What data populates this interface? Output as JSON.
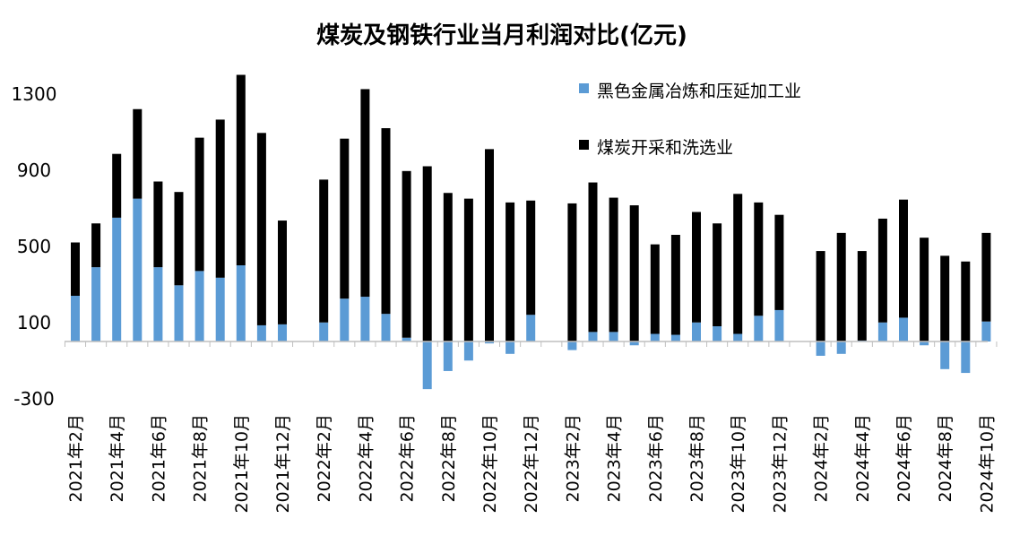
{
  "chart_data": {
    "type": "bar",
    "title": "煤炭及钢铁行业当月利润对比(亿元)",
    "xlabel": "",
    "ylabel": "",
    "ylim": [
      -300,
      1400
    ],
    "yticks": [
      -300,
      100,
      500,
      900,
      1300
    ],
    "legend_position": "top-right",
    "grid": false,
    "categories": [
      "2021年2月",
      "2021年3月",
      "2021年4月",
      "2021年5月",
      "2021年6月",
      "2021年7月",
      "2021年8月",
      "2021年9月",
      "2021年10月",
      "2021年11月",
      "2021年12月",
      "2022年1月",
      "2022年2月",
      "2022年3月",
      "2022年4月",
      "2022年5月",
      "2022年6月",
      "2022年7月",
      "2022年8月",
      "2022年9月",
      "2022年10月",
      "2022年11月",
      "2022年12月",
      "2023年1月",
      "2023年2月",
      "2023年3月",
      "2023年4月",
      "2023年5月",
      "2023年6月",
      "2023年7月",
      "2023年8月",
      "2023年9月",
      "2023年10月",
      "2023年11月",
      "2023年12月",
      "2024年1月",
      "2024年2月",
      "2024年3月",
      "2024年4月",
      "2024年5月",
      "2024年6月",
      "2024年7月",
      "2024年8月",
      "2024年9月",
      "2024年10月"
    ],
    "xtick_labels": [
      "2021年2月",
      "2021年4月",
      "2021年6月",
      "2021年8月",
      "2021年10月",
      "2021年12月",
      "2022年2月",
      "2022年4月",
      "2022年6月",
      "2022年8月",
      "2022年10月",
      "2022年12月",
      "2023年2月",
      "2023年4月",
      "2023年6月",
      "2023年8月",
      "2023年10月",
      "2023年12月",
      "2024年2月",
      "2024年4月",
      "2024年6月",
      "2024年8月",
      "2024年10月"
    ],
    "series": [
      {
        "name": "黑色金属冶炼和压延加工业",
        "color": "#5b9bd5",
        "values": [
          240,
          390,
          650,
          750,
          390,
          295,
          370,
          335,
          400,
          85,
          90,
          null,
          100,
          225,
          235,
          145,
          20,
          -250,
          -155,
          -100,
          -10,
          -65,
          140,
          null,
          -45,
          50,
          50,
          -20,
          40,
          35,
          100,
          80,
          40,
          135,
          165,
          null,
          -75,
          -65,
          5,
          100,
          125,
          -20,
          -145,
          -165,
          105
        ]
      },
      {
        "name": "煤炭开采和洗选业",
        "color": "#000000",
        "values": [
          280,
          230,
          335,
          470,
          450,
          490,
          700,
          830,
          1000,
          1010,
          545,
          null,
          750,
          840,
          1090,
          975,
          875,
          920,
          780,
          750,
          1010,
          730,
          600,
          null,
          725,
          785,
          705,
          715,
          470,
          525,
          580,
          540,
          735,
          595,
          500,
          null,
          475,
          570,
          470,
          545,
          620,
          545,
          450,
          420,
          465
        ]
      }
    ]
  }
}
